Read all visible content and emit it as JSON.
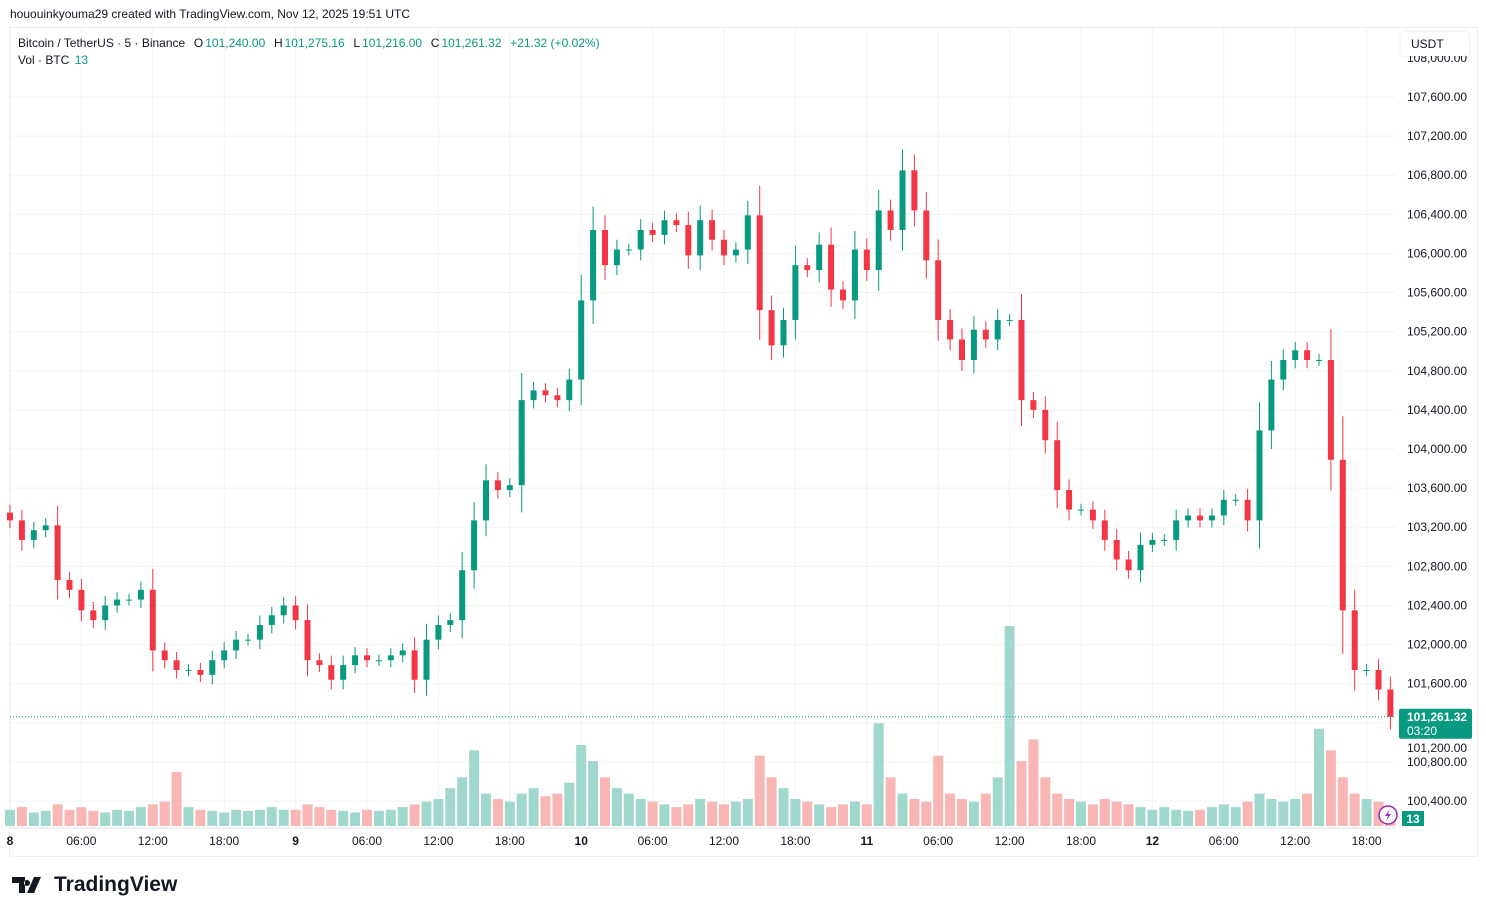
{
  "credit": "hououinkyouma29 created with TradingView.com, Nov 12, 2025 19:51 UTC",
  "legend": {
    "symbol": "Bitcoin / TetherUS · 5 · Binance",
    "o_label": "O",
    "open": "101,240.00",
    "h_label": "H",
    "high": "101,275.16",
    "l_label": "L",
    "low": "101,216.00",
    "c_label": "C",
    "close": "101,261.32",
    "change": "+21.32 (+0.02%)",
    "vol_label": "Vol · BTC",
    "vol_value": "13"
  },
  "currency": "USDT",
  "logo": "TradingView",
  "colors": {
    "up": "#089981",
    "down": "#f23645",
    "vol_up": "#8fd1c6",
    "vol_down": "#f7a9a7",
    "accent": "#089981",
    "bolt": "#9c27b0"
  },
  "chart_data": {
    "type": "candlestick",
    "title": "Bitcoin / TetherUS · 5 · Binance",
    "ylim": [
      100200,
      108100
    ],
    "y_ticks": [
      "100,400.00",
      "100,800.00",
      "101,200.00",
      "101,600.00",
      "102,000.00",
      "102,400.00",
      "102,800.00",
      "103,200.00",
      "103,600.00",
      "104,000.00",
      "104,400.00",
      "104,800.00",
      "105,200.00",
      "105,600.00",
      "106,000.00",
      "106,400.00",
      "106,800.00",
      "107,200.00",
      "107,600.00",
      "108,000.00"
    ],
    "x_ticks": [
      {
        "label": "8",
        "time": "2025-11-08 00:00"
      },
      {
        "label": "06:00",
        "time": "2025-11-08 06:00"
      },
      {
        "label": "12:00",
        "time": "2025-11-08 12:00"
      },
      {
        "label": "18:00",
        "time": "2025-11-08 18:00"
      },
      {
        "label": "9",
        "time": "2025-11-09 00:00"
      },
      {
        "label": "06:00",
        "time": "2025-11-09 06:00"
      },
      {
        "label": "12:00",
        "time": "2025-11-09 12:00"
      },
      {
        "label": "18:00",
        "time": "2025-11-09 18:00"
      },
      {
        "label": "10",
        "time": "2025-11-10 00:00"
      },
      {
        "label": "06:00",
        "time": "2025-11-10 06:00"
      },
      {
        "label": "12:00",
        "time": "2025-11-10 12:00"
      },
      {
        "label": "18:00",
        "time": "2025-11-10 18:00"
      },
      {
        "label": "11",
        "time": "2025-11-11 00:00"
      },
      {
        "label": "06:00",
        "time": "2025-11-11 06:00"
      },
      {
        "label": "12:00",
        "time": "2025-11-11 12:00"
      },
      {
        "label": "18:00",
        "time": "2025-11-11 18:00"
      },
      {
        "label": "12",
        "time": "2025-11-12 00:00"
      },
      {
        "label": "06:00",
        "time": "2025-11-12 06:00"
      },
      {
        "label": "12:00",
        "time": "2025-11-12 12:00"
      },
      {
        "label": "18:00",
        "time": "2025-11-12 18:00"
      }
    ],
    "closes_hourly": [
      103270,
      103070,
      103170,
      103220,
      102660,
      102560,
      102350,
      102250,
      102400,
      102460,
      102460,
      102560,
      101940,
      101840,
      101740,
      101740,
      101690,
      101840,
      101940,
      102050,
      102050,
      102200,
      102300,
      102400,
      102250,
      101840,
      101790,
      101640,
      101790,
      101890,
      101840,
      101840,
      101890,
      101940,
      101640,
      102050,
      102200,
      102250,
      102760,
      103270,
      103680,
      103580,
      103630,
      104500,
      104600,
      104550,
      104500,
      104710,
      105520,
      106240,
      105880,
      106040,
      106040,
      106240,
      106190,
      106340,
      106290,
      105980,
      106340,
      106140,
      105980,
      106040,
      106390,
      105420,
      105060,
      105320,
      105880,
      105830,
      106090,
      105630,
      105520,
      106040,
      105830,
      106440,
      106240,
      106850,
      106440,
      105930,
      105320,
      105120,
      104910,
      105220,
      105120,
      105320,
      105320,
      104500,
      104400,
      104090,
      103580,
      103380,
      103380,
      103270,
      103070,
      102870,
      102760,
      103020,
      103070,
      103070,
      103270,
      103320,
      103270,
      103320,
      103480,
      103480,
      103270,
      104190,
      104710,
      104910,
      105010,
      104910,
      104910,
      103890,
      102350,
      101740,
      101740,
      101540,
      101261.32
    ],
    "first_time": "2025-11-08 00:00",
    "volume_btc_approx": [
      30,
      35,
      25,
      28,
      40,
      30,
      35,
      28,
      25,
      30,
      28,
      35,
      40,
      45,
      100,
      35,
      30,
      28,
      25,
      30,
      28,
      30,
      35,
      30,
      30,
      40,
      35,
      30,
      28,
      25,
      30,
      28,
      30,
      35,
      40,
      45,
      50,
      70,
      90,
      140,
      60,
      50,
      45,
      60,
      70,
      55,
      60,
      80,
      150,
      120,
      90,
      70,
      60,
      50,
      45,
      40,
      35,
      40,
      50,
      45,
      40,
      45,
      50,
      130,
      90,
      70,
      50,
      45,
      40,
      35,
      40,
      45,
      40,
      190,
      90,
      60,
      50,
      45,
      130,
      60,
      50,
      45,
      60,
      90,
      370,
      120,
      160,
      90,
      60,
      50,
      45,
      40,
      50,
      45,
      40,
      35,
      30,
      35,
      30,
      28,
      30,
      35,
      40,
      35,
      45,
      60,
      50,
      45,
      50,
      60,
      180,
      140,
      90,
      60,
      50,
      45,
      13
    ],
    "last_price": "101,261.32",
    "countdown": "03:20",
    "last_volume": "13"
  }
}
